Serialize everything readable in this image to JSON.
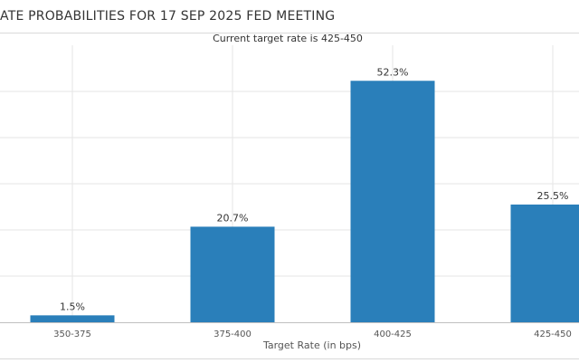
{
  "title": "ATE PROBABILITIES FOR 17 SEP 2025 FED MEETING",
  "chart_data": {
    "type": "bar",
    "subtitle": "Current target rate is 425-450",
    "xlabel": "Target Rate (in bps)",
    "ylabel": "",
    "ylim": [
      0,
      60
    ],
    "grid": true,
    "categories": [
      "350-375",
      "375-400",
      "400-425",
      "425-450"
    ],
    "values": [
      1.5,
      20.7,
      52.3,
      25.5
    ],
    "data_labels": [
      "1.5%",
      "20.7%",
      "52.3%",
      "25.5%"
    ],
    "bar_color": "#2a7fba"
  }
}
